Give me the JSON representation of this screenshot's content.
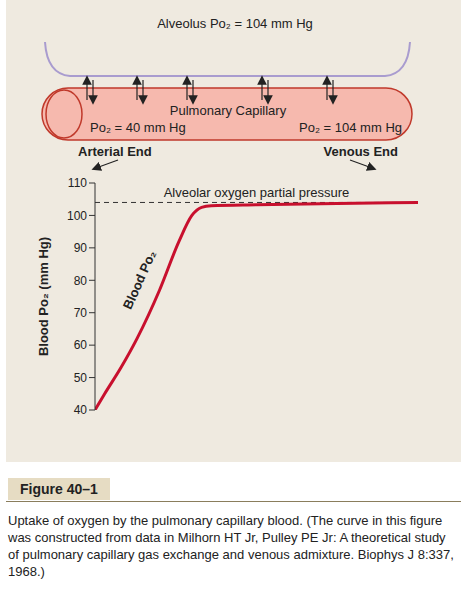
{
  "diagram": {
    "alveolus": "Alveolus Po₂ = 104 mm Hg",
    "capillary": "Pulmonary Capillary",
    "start_po2": "Po₂ = 40 mm Hg",
    "end_po2": "Po₂ = 104 mm Hg",
    "start_label": "Arterial End",
    "end_label": "Venous End"
  },
  "chart_data": {
    "type": "line",
    "x": [
      0,
      0.03,
      0.08,
      0.13,
      0.2,
      0.26,
      0.3,
      0.33,
      0.36,
      0.5,
      0.75,
      1.0
    ],
    "series": [
      {
        "name": "Blood Po₂",
        "color": "#c8102e",
        "values": [
          40,
          45,
          53,
          62,
          77,
          92,
          100,
          102.5,
          103,
          103.3,
          103.7,
          104
        ]
      }
    ],
    "y_label": "Blood Po₂ (mm Hg)",
    "xlim": [
      0,
      1
    ],
    "ylim": [
      40,
      110
    ],
    "yticks": [
      40,
      50,
      60,
      70,
      80,
      90,
      100,
      110
    ],
    "tick_labels": "y",
    "grid": false,
    "annotations": [
      {
        "text": "Alveolar oxygen partial pressure",
        "y": 104,
        "line_style": "dashed"
      }
    ]
  },
  "figure_label": "Figure 40–1",
  "caption": "Uptake of oxygen by the pulmonary capillary blood. (The curve in this figure was constructed from data in Milhorn HT Jr, Pulley PE Jr: A theoretical study of pulmonary capillary gas exchange and venous admixture. Biophys J 8:337, 1968.)"
}
